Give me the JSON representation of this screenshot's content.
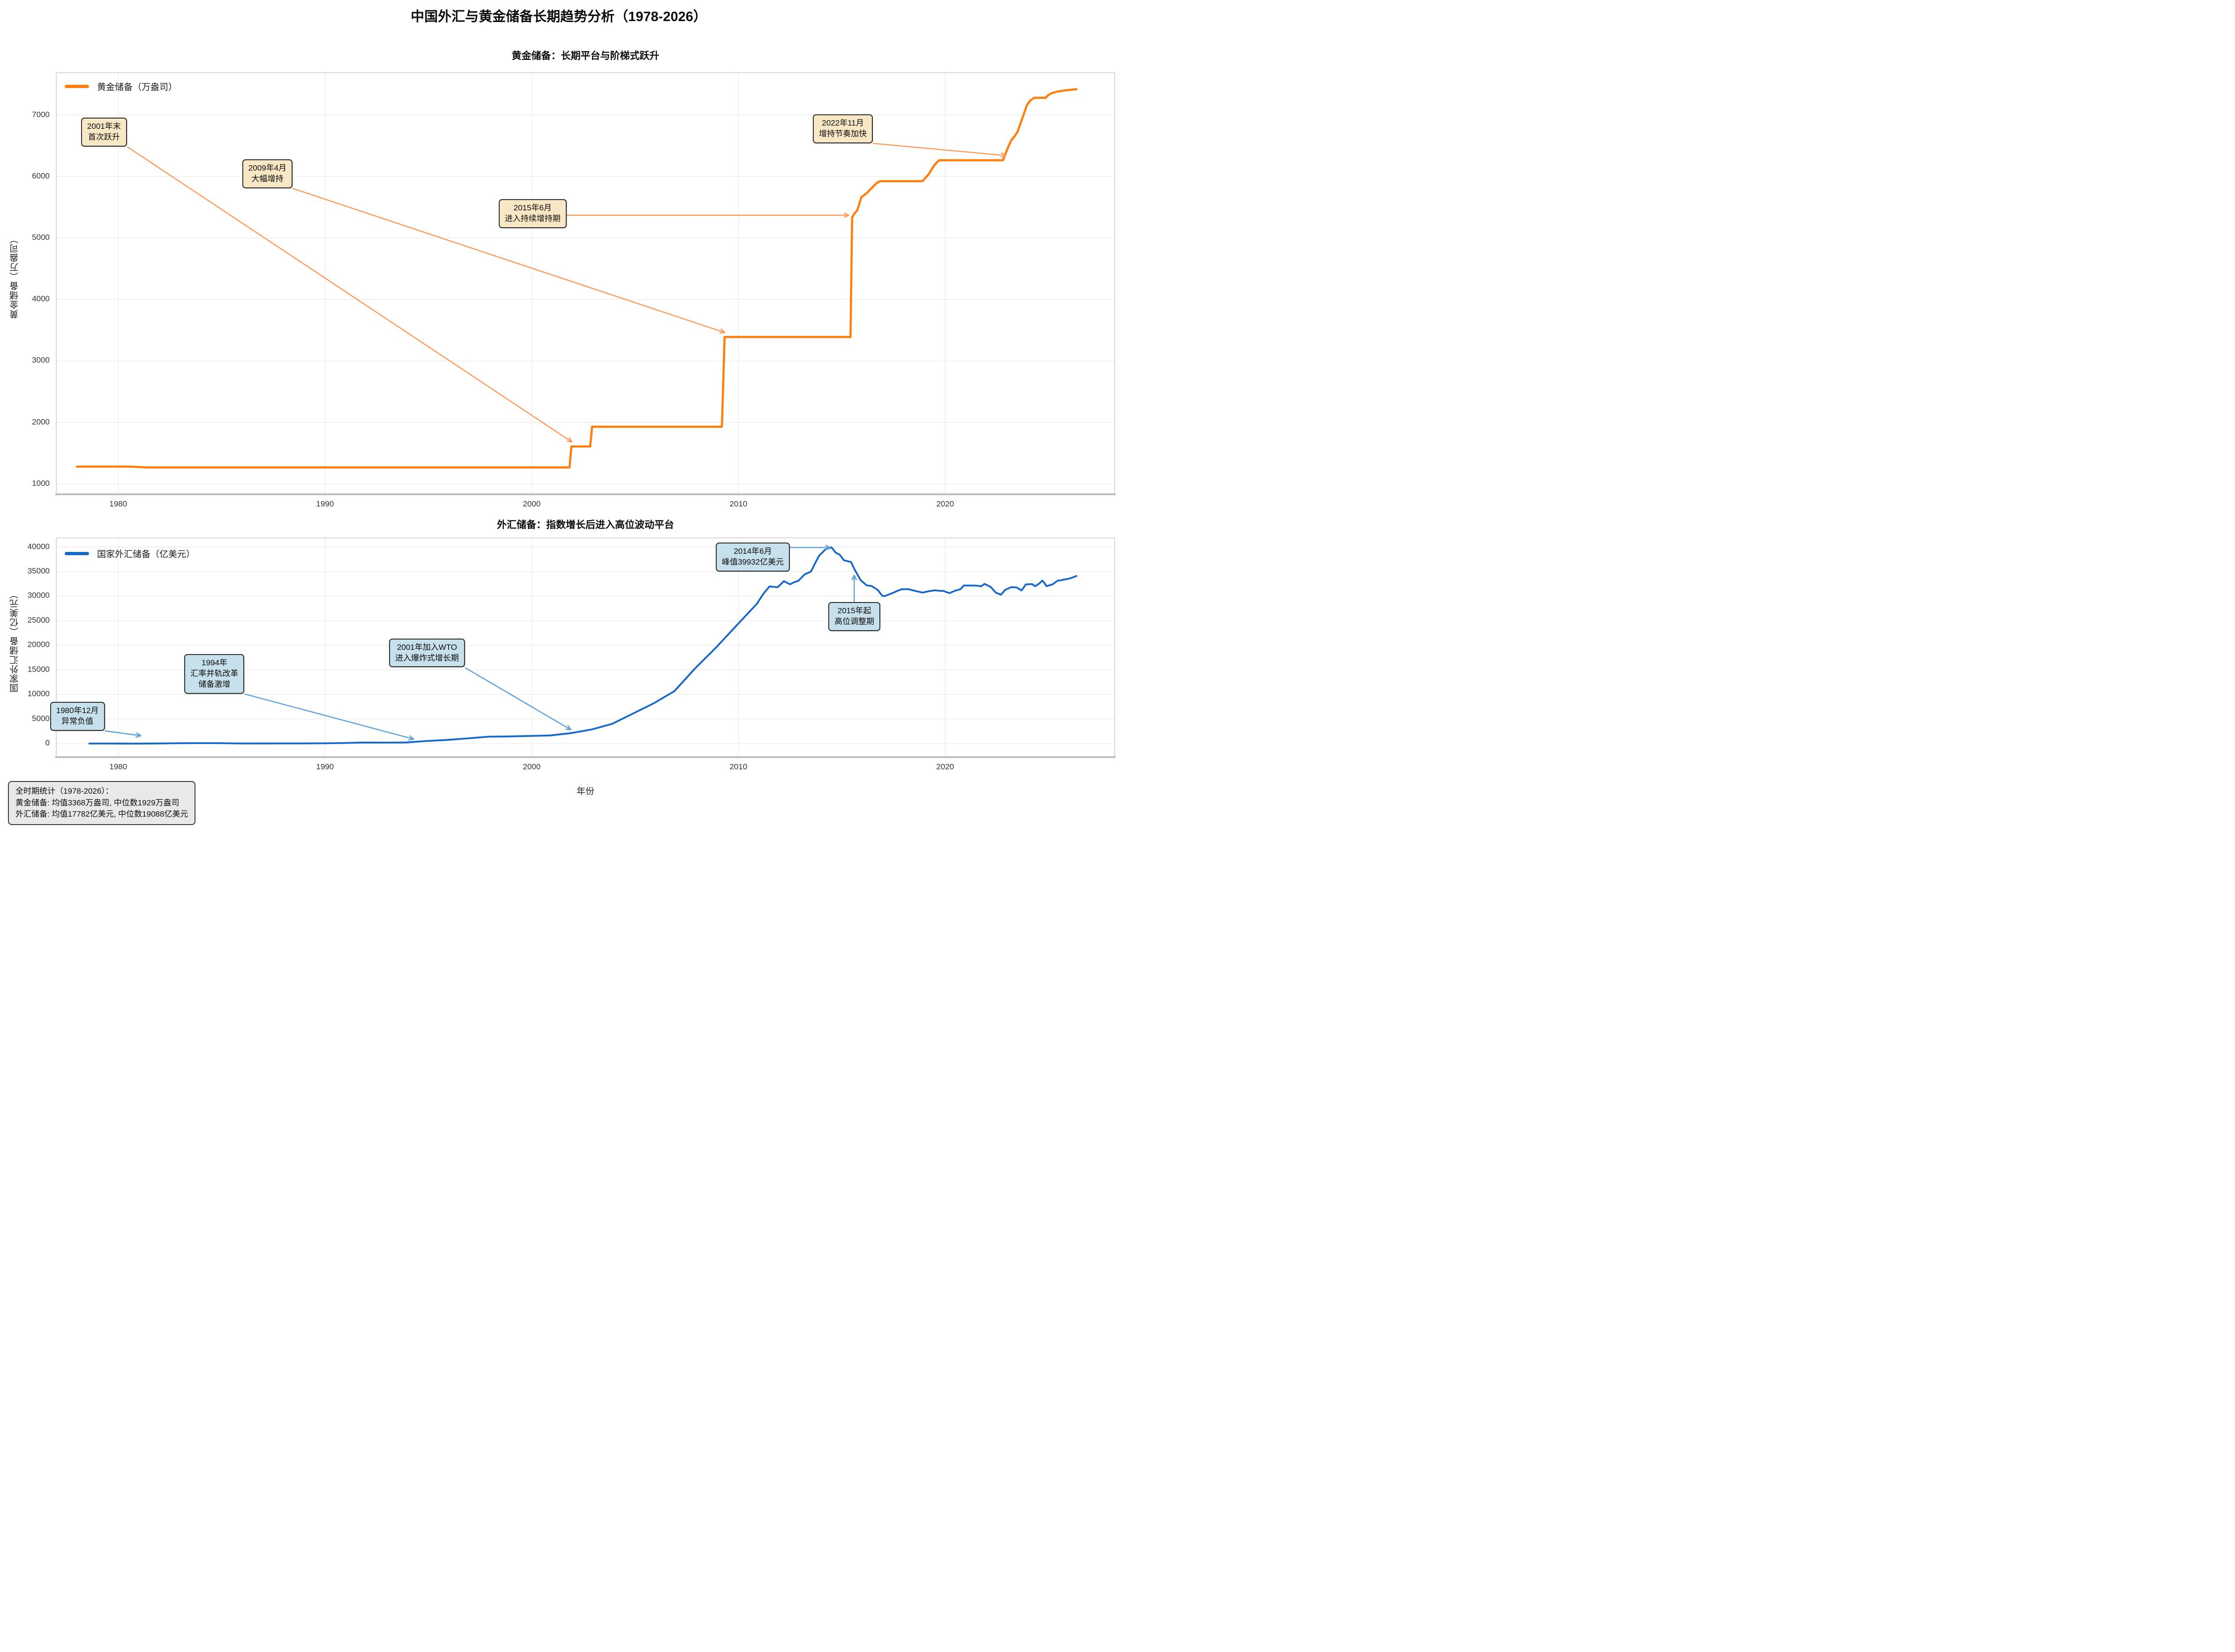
{
  "figure": {
    "title": "中国外汇与黄金储备长期趋势分析（1978-2026）",
    "xlabel": "年份",
    "stats_box": "全时期统计（1978-2026）：\n黄金储备: 均值3368万盎司, 中位数1929万盎司\n外汇储备: 均值17782亿美元, 中位数19088亿美元"
  },
  "chart_data": [
    {
      "type": "line",
      "title": "黄金储备：长期平台与阶梯式跃升",
      "series_name": "黄金储备（万盎司）",
      "ylabel": "黄金储备（万盎司）",
      "color": "#ff7f0e",
      "arrow_color": "#fb9a57",
      "annotation_fill": "#f7e7c4",
      "grid": true,
      "legend_position": "upper-left",
      "xticks": [
        1980,
        1990,
        2000,
        2010,
        2020
      ],
      "yticks": [
        1000,
        2000,
        3000,
        4000,
        5000,
        6000,
        7000
      ],
      "xlim": [
        1977.0,
        2028.2
      ],
      "ylim": [
        830,
        7690
      ],
      "points": [
        [
          1978.0,
          1280
        ],
        [
          1980.6,
          1280
        ],
        [
          1981.4,
          1267
        ],
        [
          2001.83,
          1267
        ],
        [
          2001.92,
          1608
        ],
        [
          2002.83,
          1608
        ],
        [
          2002.92,
          1929
        ],
        [
          2009.2,
          1929
        ],
        [
          2009.33,
          3389
        ],
        [
          2015.42,
          3389
        ],
        [
          2015.5,
          5332
        ],
        [
          2015.6,
          5393
        ],
        [
          2015.75,
          5451
        ],
        [
          2015.95,
          5666
        ],
        [
          2016.2,
          5726
        ],
        [
          2016.45,
          5814
        ],
        [
          2016.7,
          5898
        ],
        [
          2016.85,
          5924
        ],
        [
          2018.9,
          5924
        ],
        [
          2019.05,
          5980
        ],
        [
          2019.2,
          6035
        ],
        [
          2019.35,
          6119
        ],
        [
          2019.5,
          6194
        ],
        [
          2019.7,
          6264
        ],
        [
          2022.8,
          6264
        ],
        [
          2022.92,
          6367
        ],
        [
          2023.05,
          6482
        ],
        [
          2023.2,
          6592
        ],
        [
          2023.35,
          6650
        ],
        [
          2023.5,
          6727
        ],
        [
          2023.65,
          6869
        ],
        [
          2023.8,
          7012
        ],
        [
          2023.95,
          7158
        ],
        [
          2024.1,
          7231
        ],
        [
          2024.3,
          7280
        ],
        [
          2024.85,
          7280
        ],
        [
          2025.0,
          7329
        ],
        [
          2025.2,
          7361
        ],
        [
          2025.45,
          7383
        ],
        [
          2025.7,
          7396
        ],
        [
          2026.0,
          7409
        ],
        [
          2026.35,
          7419
        ]
      ],
      "annotations": [
        {
          "text": "2001年末\n首次跃升",
          "box_xy": [
            1978.2,
            6960
          ],
          "target_xy": [
            2001.95,
            1680
          ]
        },
        {
          "text": "2009年4月\n大幅增持",
          "box_xy": [
            1986.0,
            6280
          ],
          "target_xy": [
            2009.35,
            3460
          ]
        },
        {
          "text": "2015年6月\n进入持续增持期",
          "box_xy": [
            1998.4,
            5630
          ],
          "target_xy": [
            2015.35,
            5370
          ]
        },
        {
          "text": "2022年11月\n增持节奏加快",
          "box_xy": [
            2013.6,
            7010
          ],
          "target_xy": [
            2022.95,
            6340
          ]
        }
      ]
    },
    {
      "type": "line",
      "title": "外汇储备：指数增长后进入高位波动平台",
      "series_name": "国家外汇储备（亿美元）",
      "ylabel": "国家外汇储备（亿美元）",
      "color": "#1868c9",
      "arrow_color": "#5e9fd8",
      "annotation_fill": "#c6e0ec",
      "grid": true,
      "legend_position": "upper-left",
      "xticks": [
        1980,
        1990,
        2000,
        2010,
        2020
      ],
      "yticks": [
        0,
        5000,
        10000,
        15000,
        20000,
        25000,
        30000,
        35000,
        40000
      ],
      "xlim": [
        1977.0,
        2028.2
      ],
      "ylim": [
        -2760,
        41860
      ],
      "points": [
        [
          1978.6,
          2
        ],
        [
          1979.6,
          8
        ],
        [
          1980.9,
          -13
        ],
        [
          1981.9,
          27
        ],
        [
          1982.9,
          70
        ],
        [
          1983.9,
          89
        ],
        [
          1984.9,
          82
        ],
        [
          1985.9,
          26
        ],
        [
          1986.9,
          21
        ],
        [
          1987.9,
          29
        ],
        [
          1988.9,
          34
        ],
        [
          1989.9,
          56
        ],
        [
          1990.9,
          111
        ],
        [
          1991.9,
          217
        ],
        [
          1992.9,
          194
        ],
        [
          1993.9,
          212
        ],
        [
          1994.9,
          516
        ],
        [
          1995.9,
          736
        ],
        [
          1996.9,
          1050
        ],
        [
          1997.9,
          1399
        ],
        [
          1998.9,
          1450
        ],
        [
          1999.9,
          1547
        ],
        [
          2000.9,
          1656
        ],
        [
          2001.9,
          2122
        ],
        [
          2002.9,
          2864
        ],
        [
          2003.9,
          4033
        ],
        [
          2004.9,
          6099
        ],
        [
          2005.9,
          8189
        ],
        [
          2006.9,
          10663
        ],
        [
          2007.9,
          15282
        ],
        [
          2008.9,
          19460
        ],
        [
          2009.9,
          23992
        ],
        [
          2010.9,
          28473
        ],
        [
          2011.2,
          30447
        ],
        [
          2011.5,
          31975
        ],
        [
          2011.9,
          31811
        ],
        [
          2012.2,
          33050
        ],
        [
          2012.5,
          32400
        ],
        [
          2012.7,
          32851
        ],
        [
          2012.9,
          33116
        ],
        [
          2013.2,
          34430
        ],
        [
          2013.5,
          34970
        ],
        [
          2013.7,
          36627
        ],
        [
          2013.9,
          38213
        ],
        [
          2014.2,
          39480
        ],
        [
          2014.5,
          39932
        ],
        [
          2014.7,
          38877
        ],
        [
          2014.9,
          38430
        ],
        [
          2015.1,
          37300
        ],
        [
          2015.45,
          36938
        ],
        [
          2015.6,
          35574
        ],
        [
          2015.9,
          33304
        ],
        [
          2016.2,
          32197
        ],
        [
          2016.45,
          32052
        ],
        [
          2016.75,
          31207
        ],
        [
          2016.95,
          30105
        ],
        [
          2017.05,
          29982
        ],
        [
          2017.4,
          30535
        ],
        [
          2017.7,
          31085
        ],
        [
          2017.9,
          31399
        ],
        [
          2018.2,
          31428
        ],
        [
          2018.5,
          31121
        ],
        [
          2018.75,
          30870
        ],
        [
          2018.9,
          30727
        ],
        [
          2019.2,
          30988
        ],
        [
          2019.5,
          31192
        ],
        [
          2019.75,
          31073
        ],
        [
          2019.9,
          31079
        ],
        [
          2020.2,
          30606
        ],
        [
          2020.5,
          31123
        ],
        [
          2020.75,
          31426
        ],
        [
          2020.9,
          32165
        ],
        [
          2021.2,
          32170
        ],
        [
          2021.5,
          32140
        ],
        [
          2021.75,
          32006
        ],
        [
          2021.9,
          32502
        ],
        [
          2022.2,
          31880
        ],
        [
          2022.45,
          30713
        ],
        [
          2022.7,
          30290
        ],
        [
          2022.9,
          31277
        ],
        [
          2023.2,
          31839
        ],
        [
          2023.45,
          31765
        ],
        [
          2023.7,
          31151
        ],
        [
          2023.9,
          32380
        ],
        [
          2024.2,
          32457
        ],
        [
          2024.35,
          32008
        ],
        [
          2024.55,
          32564
        ],
        [
          2024.7,
          33164
        ],
        [
          2024.8,
          32659
        ],
        [
          2024.9,
          32024
        ],
        [
          2025.2,
          32407
        ],
        [
          2025.45,
          33174
        ],
        [
          2025.6,
          33222
        ],
        [
          2025.75,
          33387
        ],
        [
          2025.9,
          33460
        ],
        [
          2026.1,
          33700
        ],
        [
          2026.35,
          34100
        ]
      ],
      "annotations": [
        {
          "text": "1980年12月\n异常负值",
          "box_xy": [
            1976.7,
            8450
          ],
          "target_xy": [
            1981.1,
            1600
          ]
        },
        {
          "text": "1994年\n汇率并轨改革\n储备激增",
          "box_xy": [
            1983.2,
            18200
          ],
          "target_xy": [
            1994.3,
            900
          ]
        },
        {
          "text": "2001年加入WTO\n进入爆炸式增长期",
          "box_xy": [
            1993.1,
            21400
          ],
          "target_xy": [
            2001.9,
            2800
          ]
        },
        {
          "text": "2014年6月\n峰值39932亿美元",
          "box_xy": [
            2008.9,
            40900
          ],
          "target_xy": [
            2014.45,
            39900
          ]
        },
        {
          "text": "2015年起\n高位调整期",
          "box_xy": [
            2014.35,
            28800
          ],
          "target_xy": [
            2015.6,
            34300
          ]
        }
      ]
    }
  ]
}
